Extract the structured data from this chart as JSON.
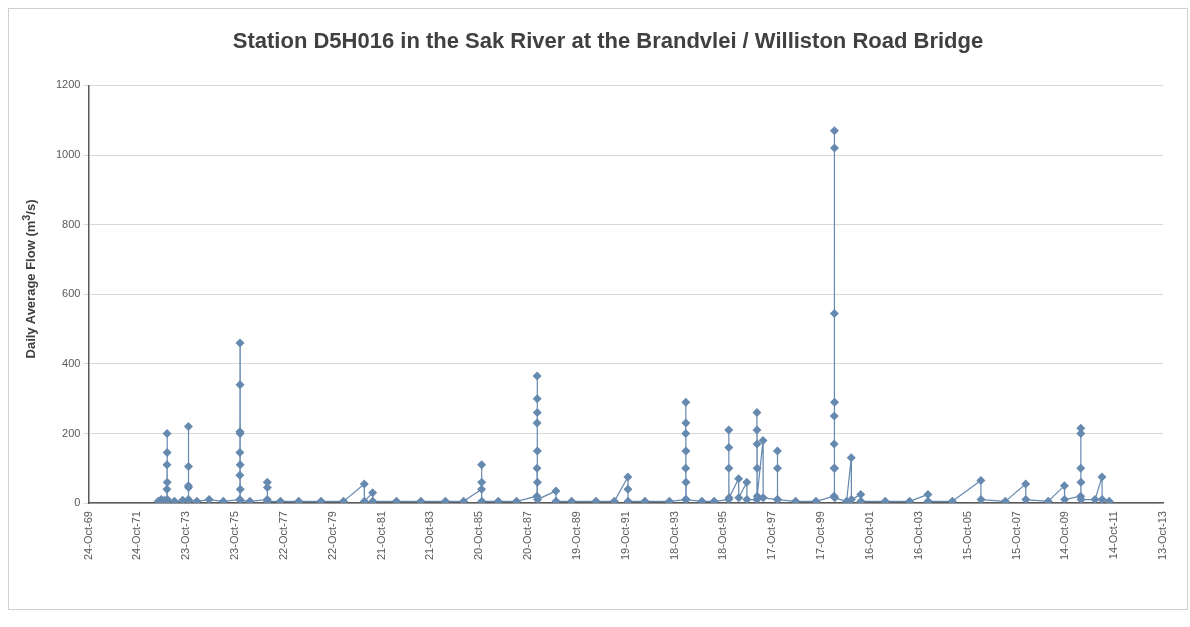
{
  "chart_data": {
    "type": "line",
    "title": "Station D5H016 in the Sak River at the Brandvlei / Williston Road Bridge",
    "ylabel": "Daily Average Flow (m$^{3}$/s)",
    "xlim": [
      "1969-10-24",
      "2013-10-13"
    ],
    "xticks": [
      {
        "value": "1969-10-24",
        "label": "24-Oct-69"
      },
      {
        "value": "1971-10-24",
        "label": "24-Oct-71"
      },
      {
        "value": "1973-10-23",
        "label": "23-Oct-73"
      },
      {
        "value": "1975-10-23",
        "label": "23-Oct-75"
      },
      {
        "value": "1977-10-22",
        "label": "22-Oct-77"
      },
      {
        "value": "1979-10-22",
        "label": "22-Oct-79"
      },
      {
        "value": "1981-10-21",
        "label": "21-Oct-81"
      },
      {
        "value": "1983-10-21",
        "label": "21-Oct-83"
      },
      {
        "value": "1985-10-20",
        "label": "20-Oct-85"
      },
      {
        "value": "1987-10-20",
        "label": "20-Oct-87"
      },
      {
        "value": "1989-10-19",
        "label": "19-Oct-89"
      },
      {
        "value": "1991-10-19",
        "label": "19-Oct-91"
      },
      {
        "value": "1993-10-18",
        "label": "18-Oct-93"
      },
      {
        "value": "1995-10-18",
        "label": "18-Oct-95"
      },
      {
        "value": "1997-10-17",
        "label": "17-Oct-97"
      },
      {
        "value": "1999-10-17",
        "label": "17-Oct-99"
      },
      {
        "value": "2001-10-16",
        "label": "16-Oct-01"
      },
      {
        "value": "2003-10-16",
        "label": "16-Oct-03"
      },
      {
        "value": "2005-10-15",
        "label": "15-Oct-05"
      },
      {
        "value": "2007-10-15",
        "label": "15-Oct-07"
      },
      {
        "value": "2009-10-14",
        "label": "14-Oct-09"
      },
      {
        "value": "2011-10-14",
        "label": "14-Oct-11"
      },
      {
        "value": "2013-10-13",
        "label": "13-Oct-13"
      }
    ],
    "ylim": [
      0,
      1200
    ],
    "yticks": [
      0,
      200,
      400,
      600,
      800,
      1000,
      1200
    ],
    "grid": "y",
    "marker": "diamond",
    "line_style": "solid",
    "series": [
      {
        "color": "#6689b0",
        "x": [
          "1972-09-01",
          "1972-10-15",
          "1972-12-01",
          "1973-01-08",
          "1973-01-09",
          "1973-01-10",
          "1973-01-11",
          "1973-01-12",
          "1973-01-13",
          "1973-01-15",
          "1973-05-01",
          "1973-09-01",
          "1973-11-24",
          "1973-11-25",
          "1973-11-26",
          "1973-11-27",
          "1973-11-28",
          "1973-11-30",
          "1974-04-01",
          "1974-10-01",
          "1975-05-01",
          "1976-01-02",
          "1976-01-03",
          "1976-01-04",
          "1976-01-05",
          "1976-01-06",
          "1976-01-07",
          "1976-01-08",
          "1976-01-09",
          "1976-01-10",
          "1976-01-13",
          "1976-06-01",
          "1977-02-16",
          "1977-02-17",
          "1977-02-18",
          "1977-02-20",
          "1977-09-01",
          "1978-06-01",
          "1979-05-01",
          "1980-04-01",
          "1981-02-05",
          "1981-02-07",
          "1981-06-10",
          "1981-06-12",
          "1982-06-01",
          "1983-06-01",
          "1984-06-01",
          "1985-03-01",
          "1985-11-24",
          "1985-11-25",
          "1985-11-26",
          "1985-11-28",
          "1986-08-01",
          "1987-05-01",
          "1988-03-01",
          "1988-03-02",
          "1988-03-03",
          "1988-03-04",
          "1988-03-05",
          "1988-03-06",
          "1988-03-07",
          "1988-03-08",
          "1988-03-10",
          "1988-12-10",
          "1988-12-12",
          "1989-08-01",
          "1990-08-01",
          "1991-05-01",
          "1991-11-20",
          "1991-11-21",
          "1991-11-23",
          "1992-08-01",
          "1993-08-01",
          "1994-04-01",
          "1994-04-02",
          "1994-04-03",
          "1994-04-04",
          "1994-04-05",
          "1994-04-06",
          "1994-04-07",
          "1994-04-09",
          "1994-12-01",
          "1995-06-01",
          "1996-01-05",
          "1996-01-06",
          "1996-01-07",
          "1996-01-08",
          "1996-01-10",
          "1996-06-01",
          "1996-06-03",
          "1996-10-01",
          "1996-10-03",
          "1997-03-01",
          "1997-03-02",
          "1997-03-03",
          "1997-03-04",
          "1997-03-05",
          "1997-03-07",
          "1997-06-01",
          "1997-06-03",
          "1998-01-01",
          "1998-01-02",
          "1998-01-03",
          "1998-01-05",
          "1998-10-01",
          "1999-08-01",
          "2000-04-28",
          "2000-04-29",
          "2000-04-30",
          "2000-05-01",
          "2000-05-02",
          "2000-05-03",
          "2000-05-04",
          "2000-05-05",
          "2000-05-06",
          "2000-05-08",
          "2000-11-01",
          "2001-01-10",
          "2001-01-12",
          "2001-06-01",
          "2001-06-03",
          "2002-06-01",
          "2003-06-01",
          "2004-03-01",
          "2004-03-03",
          "2005-03-01",
          "2006-05-01",
          "2006-05-03",
          "2007-05-01",
          "2008-03-01",
          "2008-03-03",
          "2009-02-01",
          "2009-10-01",
          "2009-10-03",
          "2010-06-01",
          "2010-06-02",
          "2010-06-03",
          "2010-06-04",
          "2010-06-05",
          "2010-06-07",
          "2011-01-01",
          "2011-04-15",
          "2011-04-17",
          "2011-08-01"
        ],
        "values": [
          5,
          10,
          8,
          5,
          40,
          110,
          200,
          145,
          60,
          10,
          5,
          8,
          10,
          50,
          220,
          105,
          45,
          8,
          5,
          10,
          5,
          10,
          80,
          145,
          205,
          460,
          340,
          200,
          110,
          40,
          8,
          5,
          10,
          60,
          45,
          5,
          5,
          5,
          5,
          5,
          55,
          5,
          30,
          5,
          5,
          5,
          5,
          5,
          40,
          110,
          60,
          5,
          5,
          5,
          20,
          100,
          230,
          365,
          300,
          260,
          150,
          60,
          10,
          35,
          5,
          5,
          5,
          5,
          75,
          40,
          5,
          5,
          5,
          10,
          100,
          200,
          290,
          230,
          150,
          60,
          10,
          5,
          5,
          10,
          210,
          160,
          100,
          15,
          70,
          15,
          60,
          10,
          10,
          260,
          210,
          170,
          100,
          20,
          180,
          15,
          10,
          150,
          100,
          10,
          5,
          5,
          20,
          100,
          170,
          250,
          545,
          1070,
          1020,
          290,
          100,
          15,
          5,
          130,
          10,
          25,
          5,
          5,
          5,
          25,
          5,
          5,
          65,
          10,
          5,
          55,
          10,
          5,
          50,
          10,
          20,
          100,
          215,
          200,
          60,
          10,
          10,
          75,
          10,
          5
        ]
      }
    ]
  }
}
